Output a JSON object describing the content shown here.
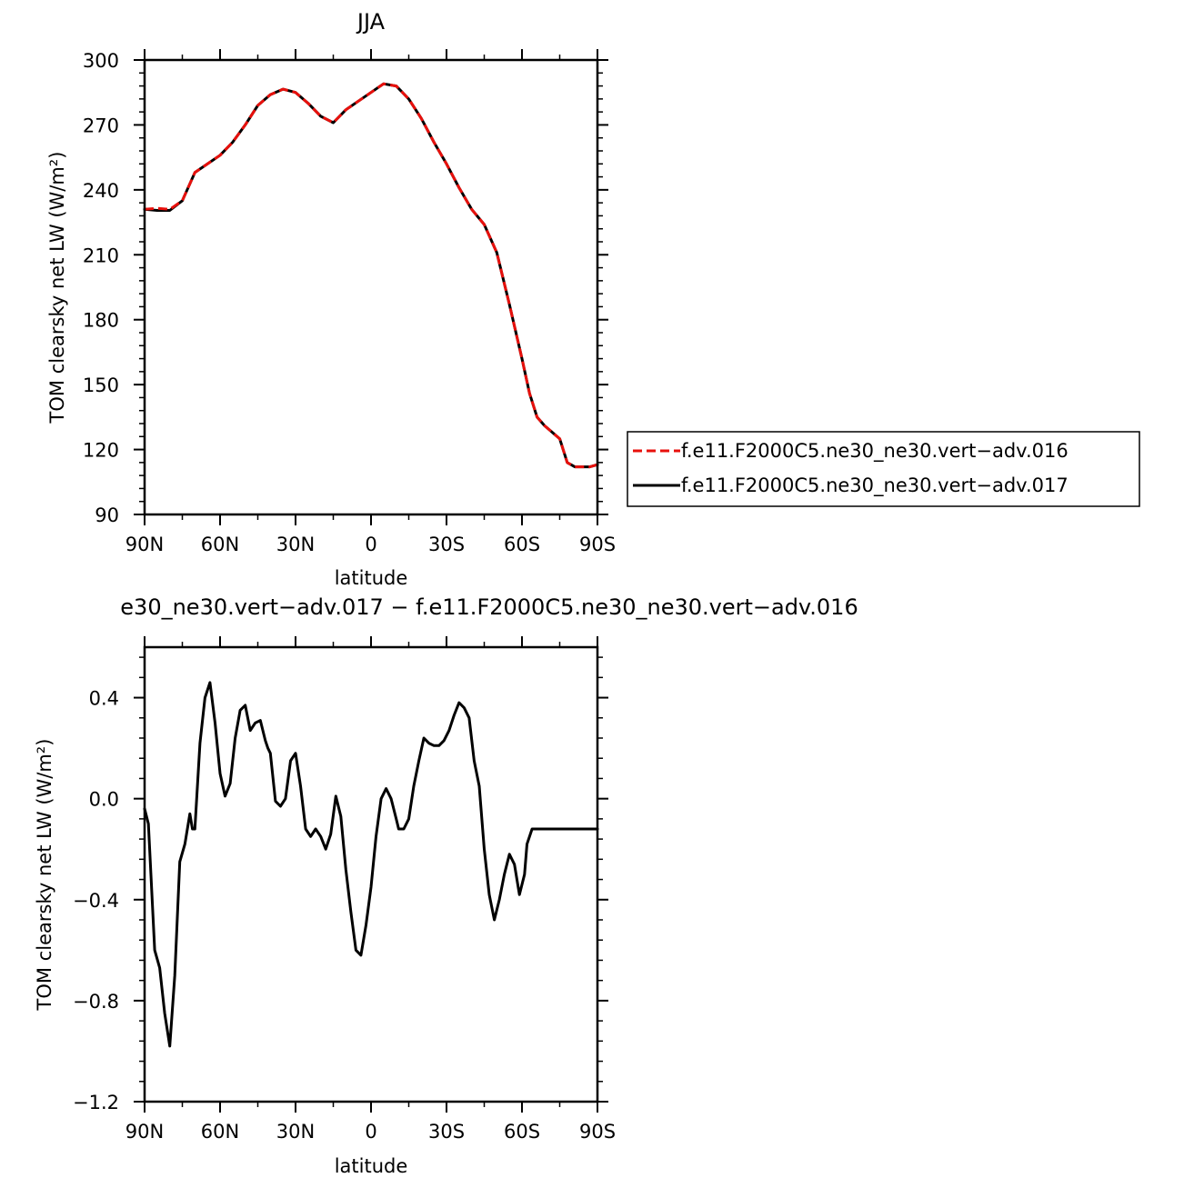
{
  "chart_data": [
    {
      "type": "line",
      "title": "JJA",
      "xlabel": "latitude",
      "ylabel": "TOM clearsky net LW (W/m²)",
      "xlim": [
        -90,
        90
      ],
      "ylim": [
        90,
        300
      ],
      "x_tick_values": [
        -90,
        -60,
        -30,
        0,
        30,
        60,
        90
      ],
      "x_tick_labels": [
        "90N",
        "60N",
        "30N",
        "0",
        "30S",
        "60S",
        "90S"
      ],
      "y_tick_values": [
        90,
        120,
        150,
        180,
        210,
        240,
        270,
        300
      ],
      "y_tick_labels": [
        "90",
        "120",
        "150",
        "180",
        "210",
        "240",
        "270",
        "300"
      ],
      "grid": false,
      "legend_position": "right",
      "series": [
        {
          "name": "f.e11.F2000C5.ne30_ne30.vert−adv.016",
          "color": "#e8100c",
          "dash": "dashed",
          "x": [
            -90,
            -85,
            -80,
            -75,
            -70,
            -65,
            -60,
            -55,
            -50,
            -45,
            -40,
            -35,
            -30,
            -25,
            -20,
            -15,
            -10,
            -5,
            0,
            5,
            10,
            15,
            20,
            25,
            30,
            35,
            40,
            45,
            50,
            55,
            60,
            63,
            66,
            69,
            72,
            75,
            78,
            81,
            84,
            87,
            90
          ],
          "y": [
            231,
            231.5,
            231,
            235,
            248,
            252,
            256,
            262,
            270,
            279,
            284,
            286.5,
            285,
            280,
            274,
            271,
            277,
            281,
            285,
            289,
            288,
            282,
            273,
            262,
            252,
            241,
            231,
            224,
            211,
            187,
            162,
            146,
            135,
            131,
            128,
            125,
            114,
            112,
            112,
            112,
            113
          ]
        },
        {
          "name": "f.e11.F2000C5.ne30_ne30.vert−adv.017",
          "color": "#000000",
          "dash": "solid",
          "x": [
            -90,
            -85,
            -80,
            -75,
            -70,
            -65,
            -60,
            -55,
            -50,
            -45,
            -40,
            -35,
            -30,
            -25,
            -20,
            -15,
            -10,
            -5,
            0,
            5,
            10,
            15,
            20,
            25,
            30,
            35,
            40,
            45,
            50,
            55,
            60,
            63,
            66,
            69,
            72,
            75,
            78,
            81,
            84,
            87,
            90
          ],
          "y": [
            231,
            230.5,
            230.5,
            235,
            248,
            252,
            256,
            262,
            270,
            279,
            284,
            286.5,
            285,
            280,
            274,
            271,
            277,
            281,
            285,
            289,
            288,
            282,
            273,
            262,
            252,
            241,
            231,
            224,
            211,
            187,
            162,
            146,
            135,
            131,
            128,
            125,
            114,
            112,
            112,
            112,
            113
          ]
        }
      ]
    },
    {
      "type": "line",
      "title": "e30_ne30.vert−adv.017 − f.e11.F2000C5.ne30_ne30.vert−adv.016",
      "xlabel": "latitude",
      "ylabel": "TOM clearsky net LW (W/m²)",
      "xlim": [
        -90,
        90
      ],
      "ylim": [
        -1.2,
        0.6
      ],
      "x_tick_values": [
        -90,
        -60,
        -30,
        0,
        30,
        60,
        90
      ],
      "x_tick_labels": [
        "90N",
        "60N",
        "30N",
        "0",
        "30S",
        "60S",
        "90S"
      ],
      "y_tick_values": [
        -1.2,
        -0.8,
        -0.4,
        0.0,
        0.4
      ],
      "y_tick_labels": [
        "−1.2",
        "−0.8",
        "−0.4",
        "0.0",
        "0.4"
      ],
      "grid": false,
      "series": [
        {
          "color": "#000000",
          "dash": "solid",
          "x": [
            -90,
            -88.5,
            -86,
            -84,
            -82,
            -80,
            -78,
            -76,
            -74,
            -72,
            -71,
            -70,
            -68,
            -66,
            -64,
            -62,
            -60,
            -58,
            -56,
            -54,
            -52,
            -50,
            -48,
            -46,
            -44,
            -42,
            -41,
            -40,
            -38,
            -36,
            -34,
            -32,
            -30,
            -28,
            -26,
            -24,
            -22,
            -20,
            -18,
            -16,
            -14,
            -12,
            -10,
            -8,
            -6,
            -4,
            -2,
            0,
            2,
            4,
            6,
            8,
            10,
            11,
            13,
            15,
            17,
            19,
            21,
            23,
            25,
            27,
            29,
            31,
            33,
            35,
            37,
            39,
            41,
            43,
            45,
            47,
            49,
            51,
            53,
            55,
            57,
            59,
            61,
            62,
            64,
            66,
            68,
            70,
            72,
            74,
            76,
            78,
            80,
            82,
            83,
            84,
            85,
            86,
            87,
            88,
            90
          ],
          "y": [
            -0.04,
            -0.1,
            -0.6,
            -0.67,
            -0.85,
            -0.98,
            -0.7,
            -0.25,
            -0.18,
            -0.06,
            -0.12,
            -0.12,
            0.22,
            0.4,
            0.46,
            0.3,
            0.1,
            0.01,
            0.06,
            0.24,
            0.35,
            0.37,
            0.27,
            0.3,
            0.31,
            0.23,
            0.2,
            0.18,
            -0.01,
            -0.03,
            0.0,
            0.15,
            0.18,
            0.05,
            -0.12,
            -0.15,
            -0.12,
            -0.15,
            -0.2,
            -0.14,
            0.01,
            -0.07,
            -0.28,
            -0.45,
            -0.6,
            -0.62,
            -0.5,
            -0.35,
            -0.15,
            0.0,
            0.04,
            0.0,
            -0.08,
            -0.12,
            -0.12,
            -0.08,
            0.05,
            0.15,
            0.24,
            0.22,
            0.21,
            0.21,
            0.23,
            0.27,
            0.33,
            0.38,
            0.36,
            0.32,
            0.15,
            0.05,
            -0.2,
            -0.38,
            -0.48,
            -0.4,
            -0.3,
            -0.22,
            -0.26,
            -0.38,
            -0.3,
            -0.18,
            -0.12,
            -0.12,
            -0.12,
            -0.12,
            -0.12,
            -0.12,
            -0.12,
            -0.12,
            -0.12,
            -0.12,
            -0.12,
            -0.12,
            -0.12,
            -0.12,
            -0.12,
            -0.12,
            -0.12
          ]
        }
      ]
    }
  ]
}
